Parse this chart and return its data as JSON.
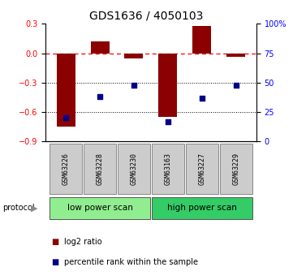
{
  "title": "GDS1636 / 4050103",
  "samples": [
    "GSM63226",
    "GSM63228",
    "GSM63230",
    "GSM63163",
    "GSM63227",
    "GSM63229"
  ],
  "log2_ratio": [
    -0.75,
    0.12,
    -0.05,
    -0.65,
    0.28,
    -0.04
  ],
  "percentile_rank": [
    20,
    38,
    48,
    17,
    37,
    48
  ],
  "bar_color": "#8B0000",
  "dot_color": "#00008B",
  "ylim_left": [
    -0.9,
    0.3
  ],
  "ylim_right": [
    0,
    100
  ],
  "yticks_left": [
    -0.9,
    -0.6,
    -0.3,
    0.0,
    0.3
  ],
  "yticks_right": [
    0,
    25,
    50,
    75,
    100
  ],
  "ytick_labels_right": [
    "0",
    "25",
    "50",
    "75",
    "100%"
  ],
  "hline_zero": 0.0,
  "hlines_dotted": [
    -0.3,
    -0.6
  ],
  "protocol_labels": [
    "low power scan",
    "high power scan"
  ],
  "protocol_colors": [
    "#90EE90",
    "#33CC66"
  ],
  "legend_items": [
    "log2 ratio",
    "percentile rank within the sample"
  ],
  "bar_width": 0.55,
  "bg_color": "#ffffff",
  "title_fontsize": 10,
  "tick_fontsize": 7,
  "sample_fontsize": 6,
  "proto_fontsize": 7.5,
  "legend_fontsize": 7
}
